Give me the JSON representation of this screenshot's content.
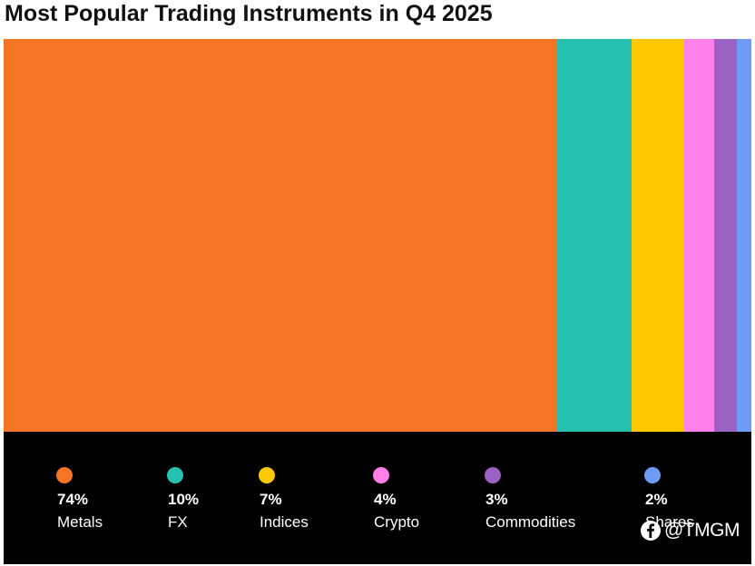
{
  "chart_data": {
    "type": "bar",
    "title": "Most Popular Trading Instruments in Q4 2025",
    "categories": [
      "Metals",
      "FX",
      "Indices",
      "Crypto",
      "Commodities",
      "Shares"
    ],
    "values": [
      74,
      10,
      7,
      4,
      3,
      2
    ],
    "value_labels": [
      "74%",
      "10%",
      "7%",
      "4%",
      "3%",
      "2%"
    ],
    "colors": [
      "#f47524",
      "#26c0b0",
      "#fdc800",
      "#ff80e8",
      "#9a62c2",
      "#6e9bf5"
    ],
    "legend_placement": "bottom",
    "grid": false
  },
  "watermark": {
    "text": "@TMGM",
    "icon": "facebook-icon"
  }
}
